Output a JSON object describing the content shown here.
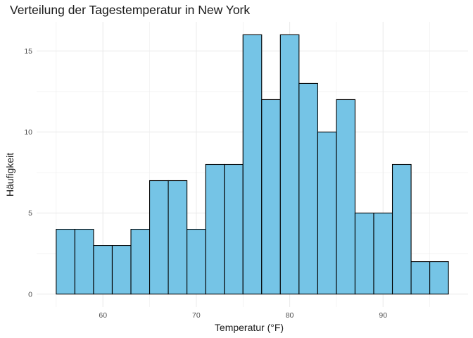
{
  "chart_data": {
    "type": "bar",
    "title": "Verteilung der Tagestemperatur in New York",
    "xlabel": "Temperatur (°F)",
    "ylabel": "Häufigkeit",
    "bins": [
      {
        "x0": 55,
        "x1": 57,
        "count": 4
      },
      {
        "x0": 57,
        "x1": 59,
        "count": 4
      },
      {
        "x0": 59,
        "x1": 61,
        "count": 3
      },
      {
        "x0": 61,
        "x1": 63,
        "count": 3
      },
      {
        "x0": 63,
        "x1": 65,
        "count": 4
      },
      {
        "x0": 65,
        "x1": 67,
        "count": 7
      },
      {
        "x0": 67,
        "x1": 69,
        "count": 7
      },
      {
        "x0": 69,
        "x1": 71,
        "count": 4
      },
      {
        "x0": 71,
        "x1": 73,
        "count": 8
      },
      {
        "x0": 73,
        "x1": 75,
        "count": 8
      },
      {
        "x0": 75,
        "x1": 77,
        "count": 16
      },
      {
        "x0": 77,
        "x1": 79,
        "count": 12
      },
      {
        "x0": 79,
        "x1": 81,
        "count": 16
      },
      {
        "x0": 81,
        "x1": 83,
        "count": 13
      },
      {
        "x0": 83,
        "x1": 85,
        "count": 10
      },
      {
        "x0": 85,
        "x1": 87,
        "count": 12
      },
      {
        "x0": 87,
        "x1": 89,
        "count": 5
      },
      {
        "x0": 89,
        "x1": 91,
        "count": 5
      },
      {
        "x0": 91,
        "x1": 93,
        "count": 8
      },
      {
        "x0": 93,
        "x1": 95,
        "count": 2
      },
      {
        "x0": 95,
        "x1": 97,
        "count": 2
      }
    ],
    "xticks": [
      60,
      70,
      80,
      90
    ],
    "yticks": [
      0,
      5,
      10,
      15
    ],
    "xlim": [
      52.9,
      99.1
    ],
    "ylim": [
      -0.8,
      16.8
    ],
    "grid": true,
    "legend": "none",
    "colors": {
      "fill": "#75c4e6",
      "stroke": "#000000",
      "grid": "#ebebeb"
    }
  }
}
